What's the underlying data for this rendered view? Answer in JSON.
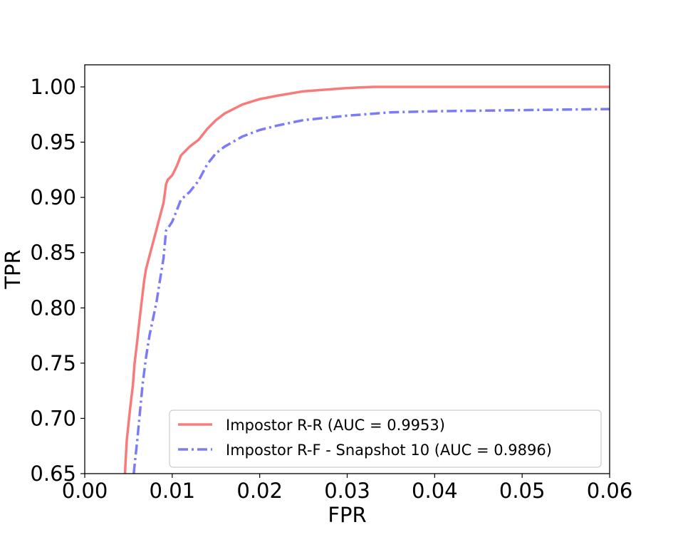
{
  "chart_data": {
    "type": "line",
    "xlabel": "FPR",
    "ylabel": "TPR",
    "xlim": [
      0.0,
      0.06
    ],
    "ylim": [
      0.65,
      1.02
    ],
    "xticks": [
      "0.00",
      "0.01",
      "0.02",
      "0.03",
      "0.04",
      "0.05",
      "0.06"
    ],
    "yticks": [
      "0.65",
      "0.70",
      "0.75",
      "0.80",
      "0.85",
      "0.90",
      "0.95",
      "1.00"
    ],
    "grid": false,
    "legend_position": "lower-right",
    "series": [
      {
        "name": "Impostor R-R (AUC = 0.9953)",
        "color": "#f77b7b",
        "style": "solid",
        "x": [
          0.0046,
          0.0047,
          0.0048,
          0.005,
          0.0052,
          0.0055,
          0.0057,
          0.006,
          0.0062,
          0.0065,
          0.0068,
          0.007,
          0.0075,
          0.008,
          0.0085,
          0.009,
          0.0093,
          0.0095,
          0.01,
          0.0105,
          0.011,
          0.0115,
          0.012,
          0.013,
          0.014,
          0.015,
          0.016,
          0.017,
          0.018,
          0.02,
          0.022,
          0.025,
          0.03,
          0.033,
          0.04,
          0.05,
          0.06
        ],
        "y": [
          0.65,
          0.665,
          0.68,
          0.695,
          0.71,
          0.73,
          0.75,
          0.77,
          0.785,
          0.805,
          0.825,
          0.835,
          0.85,
          0.865,
          0.88,
          0.895,
          0.912,
          0.916,
          0.92,
          0.928,
          0.938,
          0.942,
          0.946,
          0.952,
          0.962,
          0.97,
          0.976,
          0.98,
          0.984,
          0.989,
          0.992,
          0.996,
          0.999,
          1.0,
          1.0,
          1.0,
          1.0
        ]
      },
      {
        "name": "Impostor R-F - Snapshot 10 (AUC = 0.9896)",
        "color": "#7b7bf7",
        "style": "dashdot",
        "x": [
          0.0056,
          0.0058,
          0.006,
          0.0063,
          0.0066,
          0.007,
          0.0074,
          0.0078,
          0.0082,
          0.0086,
          0.009,
          0.0093,
          0.0095,
          0.01,
          0.0105,
          0.011,
          0.012,
          0.013,
          0.014,
          0.015,
          0.016,
          0.018,
          0.02,
          0.022,
          0.025,
          0.03,
          0.035,
          0.04,
          0.05,
          0.06
        ],
        "y": [
          0.65,
          0.665,
          0.68,
          0.705,
          0.73,
          0.755,
          0.775,
          0.79,
          0.805,
          0.825,
          0.845,
          0.87,
          0.872,
          0.878,
          0.888,
          0.898,
          0.905,
          0.915,
          0.93,
          0.94,
          0.946,
          0.955,
          0.961,
          0.965,
          0.97,
          0.974,
          0.977,
          0.978,
          0.979,
          0.98
        ]
      }
    ]
  }
}
